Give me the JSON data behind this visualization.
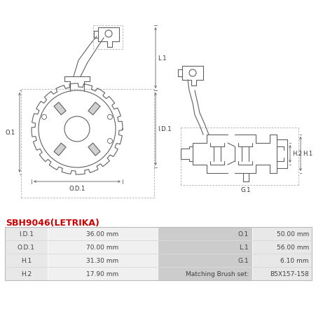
{
  "title": "SBH9046(LETRIKA)",
  "title_color": "#cc0000",
  "background_color": "#ffffff",
  "table_rows": [
    [
      "I.D.1",
      "36.00 mm",
      "O.1",
      "50.00 mm"
    ],
    [
      "O.D.1",
      "70.00 mm",
      "L.1",
      "56.00 mm"
    ],
    [
      "H.1",
      "31.30 mm",
      "G.1",
      "6.10 mm"
    ],
    [
      "H.2",
      "17.90 mm",
      "Matching Brush set:",
      "B5X157-158"
    ]
  ],
  "line_color": "#606060",
  "dim_color": "#606060",
  "dash_color": "#aaaaaa",
  "table_row_color1": "#e8e8e8",
  "table_row_color2": "#d8d8d8",
  "table_mid_color": "#cccccc",
  "table_border": "#bbbbbb",
  "title_fontsize": 9,
  "table_fontsize": 6.5
}
